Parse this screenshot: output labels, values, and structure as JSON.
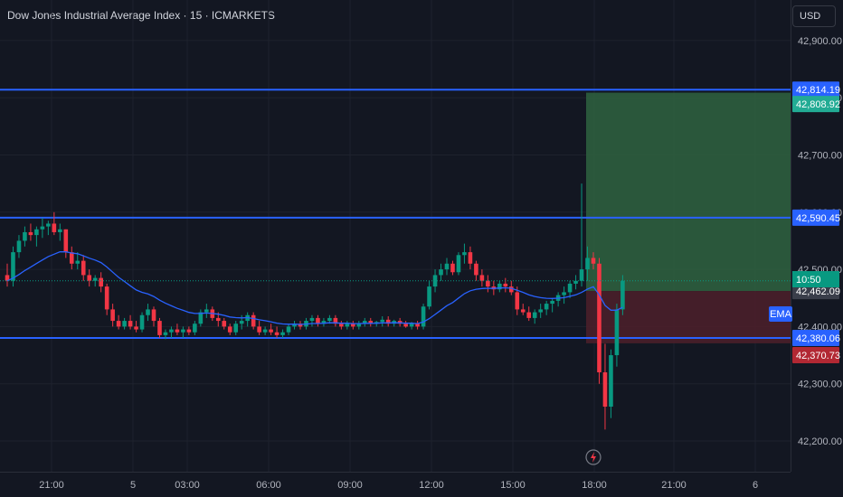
{
  "title": "Dow Jones Industrial Average Index · 15 · ICMARKETS",
  "currency": "USD",
  "ema_label": "EMA",
  "countdown": "10:50",
  "colors": {
    "background": "#131722",
    "grid": "#1e222d",
    "up": "#089981",
    "down": "#f23645",
    "ema": "#2962ff",
    "hline": "#2962ff",
    "profit_zone": "#2e5e3e",
    "loss_zone": "#4a1f2a"
  },
  "chart_data": {
    "type": "candlestick",
    "title": "Dow Jones Industrial Average Index · 15 · ICMARKETS",
    "ylim": [
      42150,
      42960
    ],
    "y_ticks": [
      42200,
      42300,
      42400,
      42500,
      42600,
      42700,
      42800,
      42900
    ],
    "y_tick_labels": [
      "42,200.00",
      "42,300.00",
      "42,400.00",
      "42,500.00",
      "42,600.00",
      "42,700.00",
      "42,800.00",
      "42,900.00"
    ],
    "x_tick_labels": [
      "21:00",
      "5",
      "03:00",
      "06:00",
      "09:00",
      "12:00",
      "15:00",
      "18:00",
      "21:00",
      "6"
    ],
    "horizontal_lines": [
      {
        "label": "42,814.19",
        "value": 42814.19
      },
      {
        "label": "42,590.45",
        "value": 42590.45
      },
      {
        "label": "42,380.06",
        "value": 42380.06
      }
    ],
    "price_badges": [
      {
        "label": "42,808.92",
        "value": 42808.92,
        "color": "#22ab94"
      },
      {
        "label": "42,462.09",
        "value": 42462.09,
        "color": "#3a3e4a"
      },
      {
        "label": "42,370.73",
        "value": 42370.73,
        "color": "#b22833"
      }
    ],
    "current_price": 42480,
    "position": {
      "entry": 42462.09,
      "target": 42808.92,
      "stop": 42370.73,
      "start_time": "17:30"
    },
    "candles": [
      [
        "16:00",
        42490,
        42510,
        42470,
        42480
      ],
      [
        "16:15",
        42480,
        42540,
        42470,
        42530
      ],
      [
        "16:30",
        42530,
        42560,
        42520,
        42550
      ],
      [
        "16:45",
        42550,
        42575,
        42540,
        42565
      ],
      [
        "17:00",
        42565,
        42580,
        42550,
        42560
      ],
      [
        "17:15",
        42560,
        42575,
        42540,
        42570
      ],
      [
        "17:30",
        42570,
        42590,
        42555,
        42575
      ],
      [
        "17:45",
        42575,
        42585,
        42560,
        42580
      ],
      [
        "18:00",
        42580,
        42600,
        42560,
        42565
      ],
      [
        "18:15",
        42565,
        42580,
        42550,
        42570
      ],
      [
        "18:30",
        42570,
        42570,
        42520,
        42530
      ],
      [
        "18:45",
        42530,
        42540,
        42500,
        42510
      ],
      [
        "19:00",
        42510,
        42530,
        42500,
        42515
      ],
      [
        "19:15",
        42515,
        42525,
        42480,
        42490
      ],
      [
        "19:30",
        42490,
        42500,
        42470,
        42480
      ],
      [
        "19:45",
        42480,
        42490,
        42470,
        42485
      ],
      [
        "20:00",
        42485,
        42495,
        42460,
        42470
      ],
      [
        "20:15",
        42470,
        42475,
        42420,
        42430
      ],
      [
        "20:30",
        42430,
        42440,
        42400,
        42410
      ],
      [
        "20:45",
        42410,
        42420,
        42395,
        42400
      ],
      [
        "21:00",
        42400,
        42415,
        42395,
        42410
      ],
      [
        "21:15",
        42410,
        42420,
        42395,
        42400
      ],
      [
        "21:30",
        42400,
        42410,
        42390,
        42395
      ],
      [
        "21:45",
        42395,
        42425,
        42390,
        42420
      ],
      [
        "22:00",
        42420,
        42440,
        42410,
        42430
      ],
      [
        "22:15",
        42430,
        42435,
        42400,
        42410
      ],
      [
        "22:30",
        42410,
        42415,
        42380,
        42385
      ],
      [
        "22:45",
        42385,
        42395,
        42378,
        42390
      ],
      [
        "23:00",
        42390,
        42400,
        42380,
        42395
      ],
      [
        "23:15",
        42395,
        42405,
        42385,
        42390
      ],
      [
        "23:30",
        42390,
        42400,
        42380,
        42395
      ],
      [
        "23:45",
        42395,
        42400,
        42385,
        42390
      ],
      [
        "00:00",
        42390,
        42410,
        42385,
        42405
      ],
      [
        "00:15",
        42405,
        42430,
        42400,
        42425
      ],
      [
        "00:30",
        42425,
        42440,
        42415,
        42430
      ],
      [
        "00:45",
        42430,
        42435,
        42410,
        42415
      ],
      [
        "01:00",
        42415,
        42425,
        42400,
        42410
      ],
      [
        "01:15",
        42410,
        42415,
        42395,
        42400
      ],
      [
        "01:30",
        42400,
        42405,
        42385,
        42390
      ],
      [
        "01:45",
        42390,
        42410,
        42385,
        42405
      ],
      [
        "02:00",
        42405,
        42420,
        42395,
        42410
      ],
      [
        "02:15",
        42410,
        42425,
        42400,
        42420
      ],
      [
        "02:30",
        42420,
        42425,
        42395,
        42400
      ],
      [
        "02:45",
        42400,
        42410,
        42385,
        42390
      ],
      [
        "03:00",
        42390,
        42400,
        42385,
        42395
      ],
      [
        "03:15",
        42395,
        42405,
        42385,
        42390
      ],
      [
        "03:30",
        42390,
        42400,
        42380,
        42385
      ],
      [
        "03:45",
        42385,
        42395,
        42380,
        42390
      ],
      [
        "04:00",
        42390,
        42405,
        42385,
        42400
      ],
      [
        "04:15",
        42400,
        42410,
        42395,
        42405
      ],
      [
        "04:30",
        42405,
        42410,
        42395,
        42400
      ],
      [
        "04:45",
        42400,
        42415,
        42395,
        42410
      ],
      [
        "05:00",
        42410,
        42420,
        42400,
        42415
      ],
      [
        "05:15",
        42415,
        42420,
        42400,
        42405
      ],
      [
        "05:30",
        42405,
        42415,
        42400,
        42410
      ],
      [
        "05:45",
        42410,
        42420,
        42405,
        42415
      ],
      [
        "06:00",
        42415,
        42420,
        42400,
        42405
      ],
      [
        "06:15",
        42405,
        42410,
        42395,
        42400
      ],
      [
        "06:30",
        42400,
        42410,
        42395,
        42405
      ],
      [
        "06:45",
        42405,
        42410,
        42395,
        42400
      ],
      [
        "07:00",
        42400,
        42410,
        42395,
        42405
      ],
      [
        "07:15",
        42405,
        42415,
        42400,
        42410
      ],
      [
        "07:30",
        42410,
        42415,
        42400,
        42405
      ],
      [
        "07:45",
        42405,
        42410,
        42400,
        42408
      ],
      [
        "08:00",
        42408,
        42418,
        42400,
        42412
      ],
      [
        "08:15",
        42412,
        42418,
        42400,
        42405
      ],
      [
        "08:30",
        42405,
        42412,
        42400,
        42410
      ],
      [
        "08:45",
        42410,
        42415,
        42400,
        42405
      ],
      [
        "09:00",
        42405,
        42410,
        42398,
        42400
      ],
      [
        "09:15",
        42400,
        42408,
        42395,
        42405
      ],
      [
        "09:30",
        42405,
        42410,
        42395,
        42400
      ],
      [
        "09:45",
        42400,
        42440,
        42395,
        42435
      ],
      [
        "10:00",
        42435,
        42480,
        42430,
        42470
      ],
      [
        "10:15",
        42470,
        42500,
        42460,
        42490
      ],
      [
        "10:30",
        42490,
        42510,
        42480,
        42500
      ],
      [
        "10:45",
        42500,
        42520,
        42490,
        42510
      ],
      [
        "11:00",
        42510,
        42515,
        42490,
        42495
      ],
      [
        "11:15",
        42495,
        42530,
        42490,
        42525
      ],
      [
        "11:30",
        42525,
        42545,
        42510,
        42530
      ],
      [
        "11:45",
        42530,
        42540,
        42500,
        42510
      ],
      [
        "12:00",
        42510,
        42515,
        42480,
        42490
      ],
      [
        "12:15",
        42490,
        42500,
        42470,
        42480
      ],
      [
        "12:30",
        42480,
        42490,
        42460,
        42470
      ],
      [
        "12:45",
        42470,
        42480,
        42455,
        42465
      ],
      [
        "13:00",
        42465,
        42480,
        42460,
        42475
      ],
      [
        "13:15",
        42475,
        42485,
        42460,
        42470
      ],
      [
        "13:30",
        42470,
        42480,
        42455,
        42460
      ],
      [
        "13:45",
        42460,
        42470,
        42420,
        42430
      ],
      [
        "14:00",
        42430,
        42440,
        42420,
        42425
      ],
      [
        "14:15",
        42425,
        42435,
        42410,
        42415
      ],
      [
        "14:30",
        42415,
        42430,
        42405,
        42425
      ],
      [
        "14:45",
        42425,
        42440,
        42415,
        42430
      ],
      [
        "15:00",
        42430,
        42445,
        42420,
        42440
      ],
      [
        "15:15",
        42440,
        42450,
        42425,
        42445
      ],
      [
        "15:30",
        42445,
        42460,
        42435,
        42455
      ],
      [
        "15:45",
        42455,
        42470,
        42440,
        42460
      ],
      [
        "16:00",
        42460,
        42480,
        42450,
        42475
      ],
      [
        "16:15",
        42475,
        42490,
        42465,
        42480
      ],
      [
        "16:30",
        42480,
        42650,
        42470,
        42500
      ],
      [
        "16:45",
        42500,
        42540,
        42480,
        42520
      ],
      [
        "17:00",
        42520,
        42530,
        42500,
        42510
      ],
      [
        "17:15",
        42510,
        42520,
        42300,
        42320
      ],
      [
        "17:30",
        42320,
        42370,
        42220,
        42260
      ],
      [
        "17:45",
        42260,
        42360,
        42240,
        42350
      ],
      [
        "18:00",
        42350,
        42440,
        42330,
        42430
      ],
      [
        "18:15",
        42430,
        42490,
        42420,
        42480
      ]
    ]
  }
}
